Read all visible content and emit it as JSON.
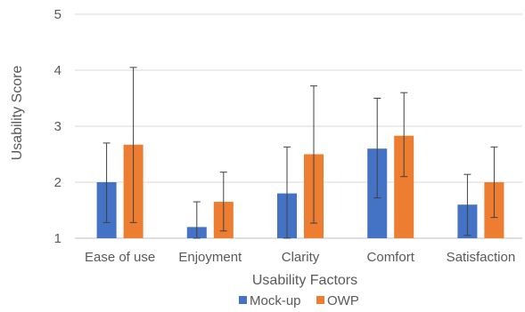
{
  "chart_data": {
    "type": "bar",
    "title": "",
    "xlabel": "Usability Factors",
    "ylabel": "Usability Score",
    "ylim": [
      1,
      5
    ],
    "yticks": [
      1,
      2,
      3,
      4,
      5
    ],
    "grid": true,
    "legend_position": "bottom",
    "categories": [
      "Ease of use",
      "Enjoyment",
      "Clarity",
      "Comfort",
      "Satisfaction"
    ],
    "series": [
      {
        "name": "Mock-up",
        "color": "#4472C4",
        "values": [
          2.0,
          1.2,
          1.8,
          2.6,
          1.6
        ],
        "error_low": [
          1.28,
          1.0,
          1.0,
          1.72,
          1.05
        ],
        "error_high": [
          2.7,
          1.65,
          2.63,
          3.5,
          2.14
        ]
      },
      {
        "name": "OWP",
        "color": "#ED7D31",
        "values": [
          2.67,
          1.65,
          2.5,
          2.83,
          2.0
        ],
        "error_low": [
          1.28,
          1.13,
          1.27,
          2.1,
          1.37
        ],
        "error_high": [
          4.05,
          2.18,
          3.72,
          3.6,
          2.63
        ]
      }
    ]
  }
}
